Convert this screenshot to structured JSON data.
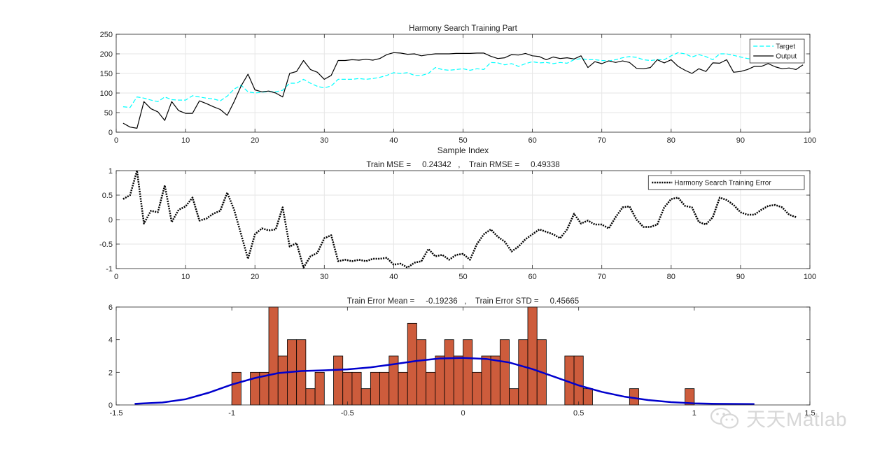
{
  "chart_data": [
    {
      "type": "line",
      "title": "Harmony Search Training Part",
      "xlabel": "Sample Index",
      "ylabel": "",
      "xlim": [
        0,
        100
      ],
      "ylim": [
        0,
        250
      ],
      "xticks": [
        0,
        10,
        20,
        30,
        40,
        50,
        60,
        70,
        80,
        90,
        100
      ],
      "yticks": [
        0,
        50,
        100,
        150,
        200,
        250
      ],
      "grid": true,
      "legend": "top-right",
      "x_start": 1,
      "series": [
        {
          "name": "Target",
          "color": "#00ffff",
          "style": "dashed",
          "values": [
            65,
            63,
            90,
            87,
            82,
            78,
            90,
            83,
            82,
            82,
            93,
            90,
            87,
            85,
            80,
            92,
            110,
            120,
            103,
            100,
            102,
            104,
            103,
            107,
            125,
            125,
            135,
            125,
            117,
            113,
            118,
            135,
            135,
            135,
            137,
            135,
            137,
            140,
            145,
            152,
            150,
            152,
            145,
            145,
            150,
            165,
            160,
            158,
            160,
            162,
            158,
            162,
            160,
            178,
            177,
            172,
            175,
            168,
            175,
            180,
            177,
            178,
            175,
            178,
            176,
            185,
            188,
            185,
            185,
            183,
            182,
            185,
            190,
            193,
            191,
            185,
            183,
            185,
            185,
            195,
            203,
            200,
            192,
            198,
            193,
            185,
            200,
            200,
            196,
            192,
            188,
            186,
            185,
            185,
            185,
            180,
            180,
            178,
            178
          ]
        },
        {
          "name": "Output",
          "color": "#000000",
          "style": "solid",
          "values": [
            23,
            13,
            10,
            78,
            60,
            52,
            30,
            78,
            55,
            48,
            48,
            80,
            73,
            65,
            58,
            43,
            78,
            118,
            148,
            108,
            103,
            105,
            100,
            90,
            150,
            155,
            183,
            160,
            153,
            135,
            145,
            183,
            183,
            185,
            184,
            186,
            184,
            188,
            198,
            203,
            202,
            199,
            200,
            195,
            198,
            200,
            200,
            200,
            201,
            201,
            201,
            202,
            202,
            194,
            188,
            190,
            198,
            197,
            201,
            195,
            193,
            185,
            192,
            188,
            190,
            187,
            195,
            165,
            180,
            175,
            182,
            178,
            182,
            178,
            163,
            162,
            165,
            185,
            177,
            185,
            168,
            158,
            150,
            162,
            155,
            177,
            176,
            185,
            153,
            155,
            160,
            168,
            168,
            175,
            167,
            162,
            164,
            160,
            172
          ]
        }
      ]
    },
    {
      "type": "line",
      "title": "Train MSE =     0.24342   ,    Train RMSE =     0.49338",
      "xlabel": "",
      "ylabel": "",
      "xlim": [
        0,
        100
      ],
      "ylim": [
        -1,
        1
      ],
      "xticks": [
        0,
        10,
        20,
        30,
        40,
        50,
        60,
        70,
        80,
        90,
        100
      ],
      "yticks": [
        -1,
        -0.5,
        0,
        0.5,
        1
      ],
      "grid": true,
      "legend": "top-right",
      "x_start": 1,
      "series": [
        {
          "name": "Harmony Search Training Error",
          "color": "#000000",
          "style": "dotted",
          "values": [
            0.42,
            0.5,
            1.0,
            -0.08,
            0.18,
            0.15,
            0.7,
            -0.05,
            0.2,
            0.27,
            0.45,
            -0.02,
            0.02,
            0.12,
            0.18,
            0.55,
            0.2,
            -0.3,
            -0.8,
            -0.3,
            -0.18,
            -0.22,
            -0.2,
            0.25,
            -0.55,
            -0.48,
            -0.98,
            -0.75,
            -0.68,
            -0.38,
            -0.32,
            -0.85,
            -0.82,
            -0.85,
            -0.82,
            -0.85,
            -0.8,
            -0.8,
            -0.78,
            -0.92,
            -0.9,
            -0.98,
            -0.88,
            -0.85,
            -0.6,
            -0.75,
            -0.72,
            -0.82,
            -0.72,
            -0.7,
            -0.82,
            -0.5,
            -0.3,
            -0.2,
            -0.35,
            -0.45,
            -0.65,
            -0.55,
            -0.4,
            -0.3,
            -0.2,
            -0.25,
            -0.3,
            -0.38,
            -0.2,
            0.12,
            -0.08,
            -0.02,
            -0.1,
            -0.1,
            -0.18,
            0.05,
            0.25,
            0.27,
            0.0,
            -0.15,
            -0.15,
            -0.1,
            0.25,
            0.42,
            0.45,
            0.28,
            0.25,
            -0.05,
            -0.1,
            0.05,
            0.45,
            0.4,
            0.3,
            0.15,
            0.1,
            0.1,
            0.2,
            0.28,
            0.3,
            0.25,
            0.1,
            0.05
          ]
        }
      ]
    },
    {
      "type": "bar",
      "title": "Train Error Mean =     -0.19236   ,    Train Error STD =     0.45665",
      "xlabel": "",
      "ylabel": "",
      "xlim": [
        -1.5,
        1.5
      ],
      "ylim": [
        0,
        6
      ],
      "xticks": [
        -1.5,
        -1,
        -0.5,
        0,
        0.5,
        1,
        1.5
      ],
      "yticks": [
        0,
        2,
        4,
        6
      ],
      "grid": false,
      "bin_width": 0.04,
      "bar_color": "#cd5c3c",
      "bins": [
        {
          "x": -1.0,
          "count": 2
        },
        {
          "x": -0.92,
          "count": 2
        },
        {
          "x": -0.88,
          "count": 2
        },
        {
          "x": -0.84,
          "count": 6
        },
        {
          "x": -0.8,
          "count": 3
        },
        {
          "x": -0.76,
          "count": 4
        },
        {
          "x": -0.72,
          "count": 4
        },
        {
          "x": -0.68,
          "count": 1
        },
        {
          "x": -0.64,
          "count": 2
        },
        {
          "x": -0.56,
          "count": 3
        },
        {
          "x": -0.52,
          "count": 2
        },
        {
          "x": -0.48,
          "count": 2
        },
        {
          "x": -0.44,
          "count": 1
        },
        {
          "x": -0.4,
          "count": 2
        },
        {
          "x": -0.36,
          "count": 2
        },
        {
          "x": -0.32,
          "count": 3
        },
        {
          "x": -0.28,
          "count": 2
        },
        {
          "x": -0.24,
          "count": 5
        },
        {
          "x": -0.2,
          "count": 4
        },
        {
          "x": -0.16,
          "count": 2
        },
        {
          "x": -0.12,
          "count": 3
        },
        {
          "x": -0.08,
          "count": 4
        },
        {
          "x": -0.04,
          "count": 3
        },
        {
          "x": 0.0,
          "count": 4
        },
        {
          "x": 0.04,
          "count": 2
        },
        {
          "x": 0.08,
          "count": 3
        },
        {
          "x": 0.12,
          "count": 3
        },
        {
          "x": 0.16,
          "count": 4
        },
        {
          "x": 0.2,
          "count": 1
        },
        {
          "x": 0.24,
          "count": 4
        },
        {
          "x": 0.28,
          "count": 6
        },
        {
          "x": 0.32,
          "count": 4
        },
        {
          "x": 0.44,
          "count": 3
        },
        {
          "x": 0.48,
          "count": 3
        },
        {
          "x": 0.52,
          "count": 1
        },
        {
          "x": 0.72,
          "count": 1
        },
        {
          "x": 0.96,
          "count": 1
        }
      ],
      "fit_curve": {
        "color": "#0000cd",
        "x": [
          -1.42,
          -1.3,
          -1.2,
          -1.1,
          -1.0,
          -0.9,
          -0.8,
          -0.7,
          -0.6,
          -0.5,
          -0.4,
          -0.3,
          -0.2,
          -0.1,
          0.0,
          0.1,
          0.2,
          0.3,
          0.4,
          0.5,
          0.6,
          0.7,
          0.8,
          0.9,
          1.0,
          1.1,
          1.26
        ],
        "y": [
          0.07,
          0.15,
          0.35,
          0.75,
          1.25,
          1.65,
          1.95,
          2.08,
          2.12,
          2.18,
          2.3,
          2.5,
          2.7,
          2.85,
          2.88,
          2.82,
          2.6,
          2.2,
          1.7,
          1.2,
          0.8,
          0.5,
          0.3,
          0.17,
          0.1,
          0.07,
          0.05
        ]
      }
    }
  ],
  "watermark": {
    "text": "天天Matlab",
    "icon": "wechat-icon"
  }
}
